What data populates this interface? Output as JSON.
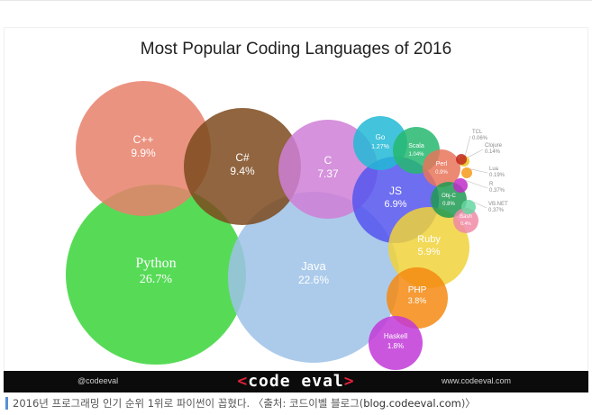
{
  "chart_data": {
    "type": "bubble",
    "title": "Most Popular Coding Languages of 2016",
    "bubbles": [
      {
        "label": "Python",
        "value": "26.7%",
        "color": "#3ad53a",
        "serif": true
      },
      {
        "label": "Java",
        "value": "22.6%",
        "color": "#9ec2e8",
        "serif": false
      },
      {
        "label": "C++",
        "value": "9.9%",
        "color": "#e8806b",
        "serif": false
      },
      {
        "label": "C#",
        "value": "9.4%",
        "color": "#7d4a1d",
        "serif": false
      },
      {
        "label": "C",
        "value": "7.37",
        "color": "#cf7fd6",
        "serif": false
      },
      {
        "label": "JS",
        "value": "6.9%",
        "color": "#5555ee",
        "serif": false
      },
      {
        "label": "Ruby",
        "value": "5.9%",
        "color": "#f0d23a",
        "serif": false
      },
      {
        "label": "PHP",
        "value": "3.8%",
        "color": "#f58a12",
        "serif": false
      },
      {
        "label": "Haskell",
        "value": "1.8%",
        "color": "#c238d8",
        "serif": false
      },
      {
        "label": "Go",
        "value": "1.27%",
        "color": "#22b8d6",
        "serif": false
      },
      {
        "label": "Scala",
        "value": "1.04%",
        "color": "#26b86e",
        "serif": false
      },
      {
        "label": "Perl",
        "value": "0.9%",
        "color": "#e8745a",
        "serif": false
      },
      {
        "label": "Obj-C",
        "value": "0.8%",
        "color": "#1e9a52",
        "serif": false
      },
      {
        "label": "Bash",
        "value": "0.4%",
        "color": "#f08aa6",
        "serif": false
      },
      {
        "label": "VB.NET",
        "value": "0.37%",
        "color": "#66d6a2",
        "serif": false
      },
      {
        "label": "R",
        "value": "0.37%",
        "color": "#c02cc8",
        "serif": false
      },
      {
        "label": "Clojure",
        "value": "0.14%",
        "color": "#e8c41f",
        "serif": false
      },
      {
        "label": "Lua",
        "value": "0.19%",
        "color": "#f59a1a",
        "serif": false
      },
      {
        "label": "TCL",
        "value": "0.06%",
        "color": "#c1281e",
        "serif": false
      }
    ]
  },
  "footer": {
    "left": "@codeeval",
    "logo_lt": "<",
    "logo_text": "code",
    "logo_text2": "eval",
    "logo_gt": ">",
    "right": "www.codeeval.com"
  },
  "caption": {
    "text": "2016년 프로그래밍 인기 순위 1위로 파이썬이 꼽혔다. 〈출처: 코드이벨 블로그(",
    "link": "blog.codeeval.com",
    "tail": ")〉"
  }
}
